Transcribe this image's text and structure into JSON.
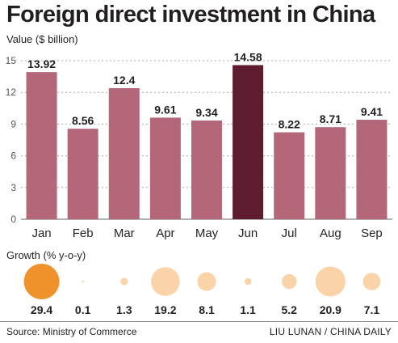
{
  "title": "Foreign direct investment in China",
  "value_axis_label": "Value ($ billion)",
  "growth_label": "Growth (% y-o-y)",
  "source": "Source: Ministry of Commerce",
  "credit": "LIU LUNAN / CHINA DAILY",
  "colors": {
    "bar": "#b5677a",
    "bar_highlight": "#5e1c2f",
    "bubble_highlight": "#f0922b",
    "bubble": "#fbd3a8",
    "grid": "#aaaaaa"
  },
  "chart_data": {
    "type": "bar",
    "title": "Foreign direct investment in China",
    "ylabel": "Value ($ billion)",
    "ylim": [
      0,
      15
    ],
    "yticks": [
      0,
      3,
      6,
      9,
      12,
      15
    ],
    "grid": true,
    "categories": [
      "Jan",
      "Feb",
      "Mar",
      "Apr",
      "May",
      "Jun",
      "Jul",
      "Aug",
      "Sep"
    ],
    "values": [
      13.92,
      8.56,
      12.4,
      9.61,
      9.34,
      14.58,
      8.22,
      8.71,
      9.41
    ],
    "highlight_category": "Jun",
    "growth": {
      "label": "Growth (% y-o-y)",
      "values": [
        29.4,
        0.1,
        1.3,
        19.2,
        8.1,
        1.1,
        5.2,
        20.9,
        7.1
      ],
      "labels": [
        "29.4",
        "0.1",
        "1.3",
        "19.2",
        "8.1",
        "1.1",
        "5.2",
        "20.9",
        "7.1"
      ],
      "highlight_category": "Jan"
    }
  }
}
